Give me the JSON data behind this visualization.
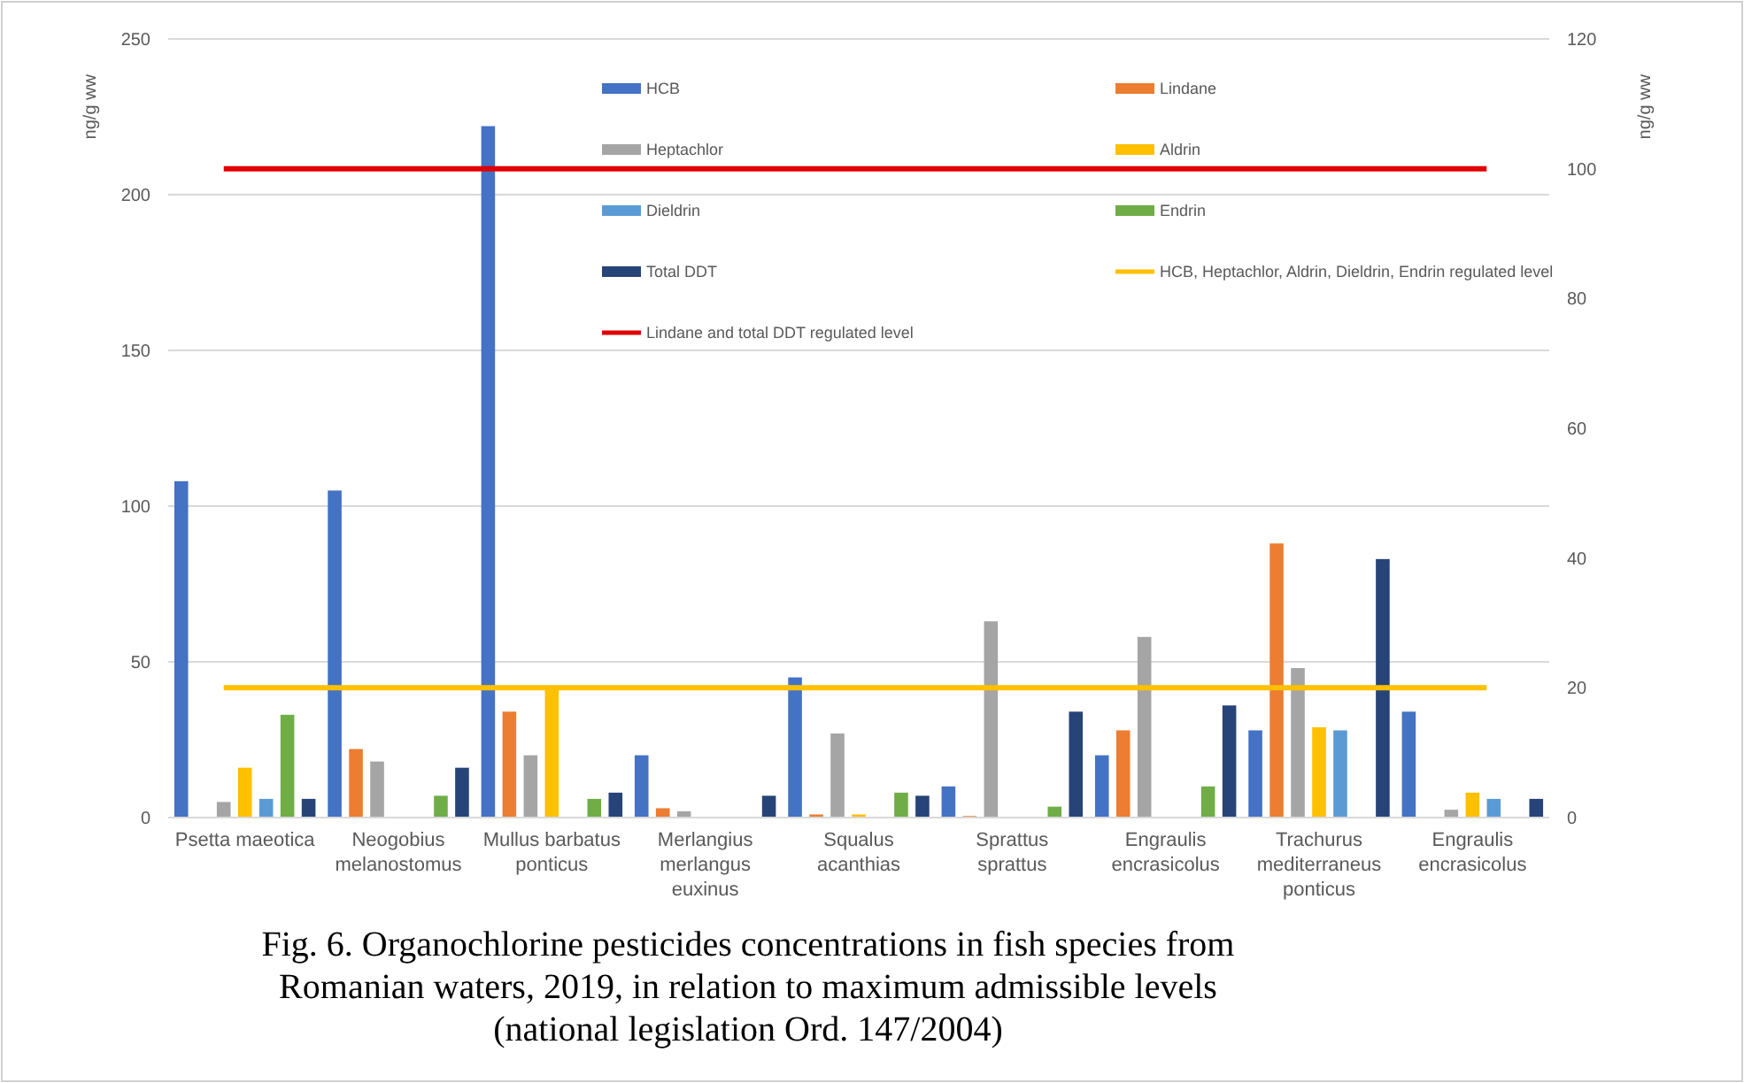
{
  "chart_data": {
    "type": "bar",
    "title": "Fig. 6. Organochlorine pesticides concentrations in fish species from Romanian waters, 2019, in relation to maximum admissible levels (national legislation Ord. 147/2004)",
    "ylabel": "ng/g ww",
    "y2label": "ng/g ww",
    "categories": [
      "Psetta maeotica",
      "Neogobius melanostomus",
      "Mullus barbatus ponticus",
      "Merlangius merlangus euxinus",
      "Squalus acanthias",
      "Sprattus sprattus",
      "Engraulis encrasicolus",
      "Trachurus mediterraneus ponticus",
      "Engraulis encrasicolus"
    ],
    "series": [
      {
        "name": "HCB",
        "color": "#4472c4",
        "values": [
          108,
          105,
          222,
          20,
          45,
          10,
          20,
          28,
          34
        ]
      },
      {
        "name": "Lindane",
        "color": "#ed7d31",
        "values": [
          null,
          22,
          34,
          3,
          1,
          0.5,
          28,
          88,
          null
        ]
      },
      {
        "name": "Heptachlor",
        "color": "#a5a5a5",
        "values": [
          5,
          18,
          20,
          2,
          27,
          63,
          58,
          48,
          2.5
        ]
      },
      {
        "name": "Aldrin",
        "color": "#ffc000",
        "values": [
          16,
          null,
          42,
          null,
          1,
          null,
          null,
          29,
          8
        ]
      },
      {
        "name": "Dieldrin",
        "color": "#5b9bd5",
        "values": [
          6,
          null,
          null,
          null,
          null,
          null,
          null,
          28,
          6
        ]
      },
      {
        "name": "Endrin",
        "color": "#70ad47",
        "values": [
          33,
          7,
          6,
          null,
          8,
          3.5,
          10,
          null,
          null
        ]
      },
      {
        "name": "Total DDT",
        "color": "#264478",
        "values": [
          6,
          16,
          8,
          7,
          7,
          34,
          36,
          83,
          6
        ]
      }
    ],
    "ref_lines": [
      {
        "axis": "y2",
        "value": 20,
        "label": "HCB, Heptachlor, Aldrin, Dieldrin, Endrin regulated level",
        "color": "#ffc000"
      },
      {
        "axis": "y2",
        "value": 100,
        "label": "Lindane and total DDT regulated level",
        "color": "#e00000"
      }
    ],
    "ylim": [
      0,
      250
    ],
    "yticks": [
      0,
      50,
      100,
      150,
      200,
      250
    ],
    "y2lim": [
      0,
      120
    ],
    "y2ticks": [
      0,
      20,
      40,
      60,
      80,
      100,
      120
    ],
    "grid": "y",
    "legend": "top"
  }
}
